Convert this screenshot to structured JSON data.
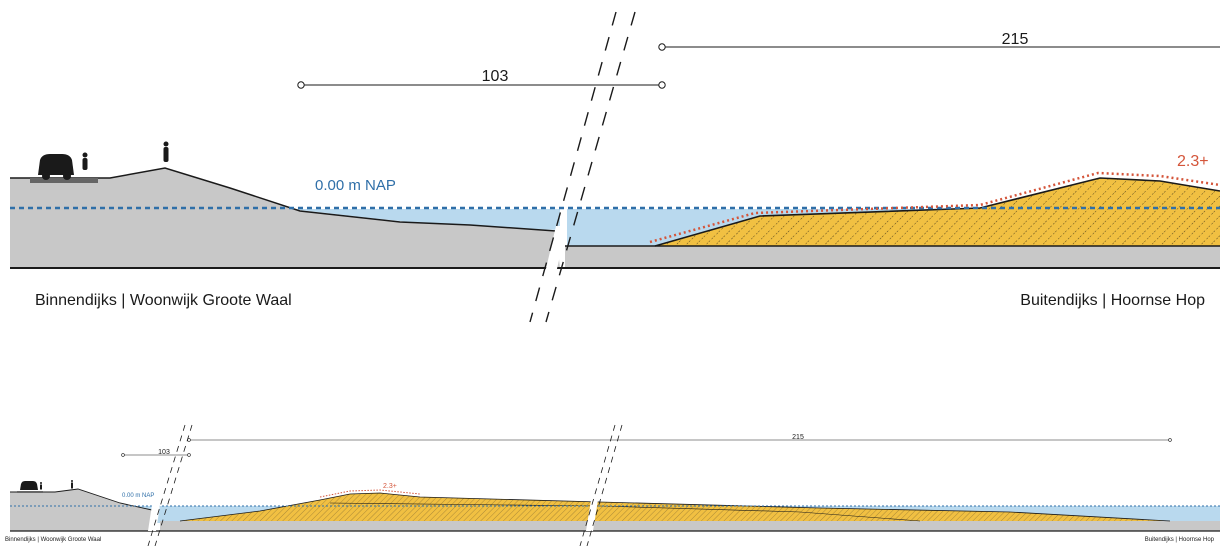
{
  "main_section": {
    "dim_left": "103",
    "dim_right": "215",
    "water_level": "0.00 m NAP",
    "height_label": "2.3+",
    "label_left": "Binnendijks | Woonwijk Groote Waal",
    "label_right": "Buitendijks | Hoornse Hop"
  },
  "overview_section": {
    "dim_left": "103",
    "dim_right": "215",
    "water_level": "0.00 m NAP",
    "height_label": "2.3+",
    "label_left": "Binnendijks | Woonwijk Groote Waal",
    "label_right": "Buitendijks | Hoornse Hop"
  },
  "colors": {
    "ground": "#c8c8c8",
    "water": "#b9d9ee",
    "sand": "#f1c042",
    "nap_line": "#2f6fa8",
    "height_line": "#d4553a",
    "outline": "#1a1a1a"
  }
}
